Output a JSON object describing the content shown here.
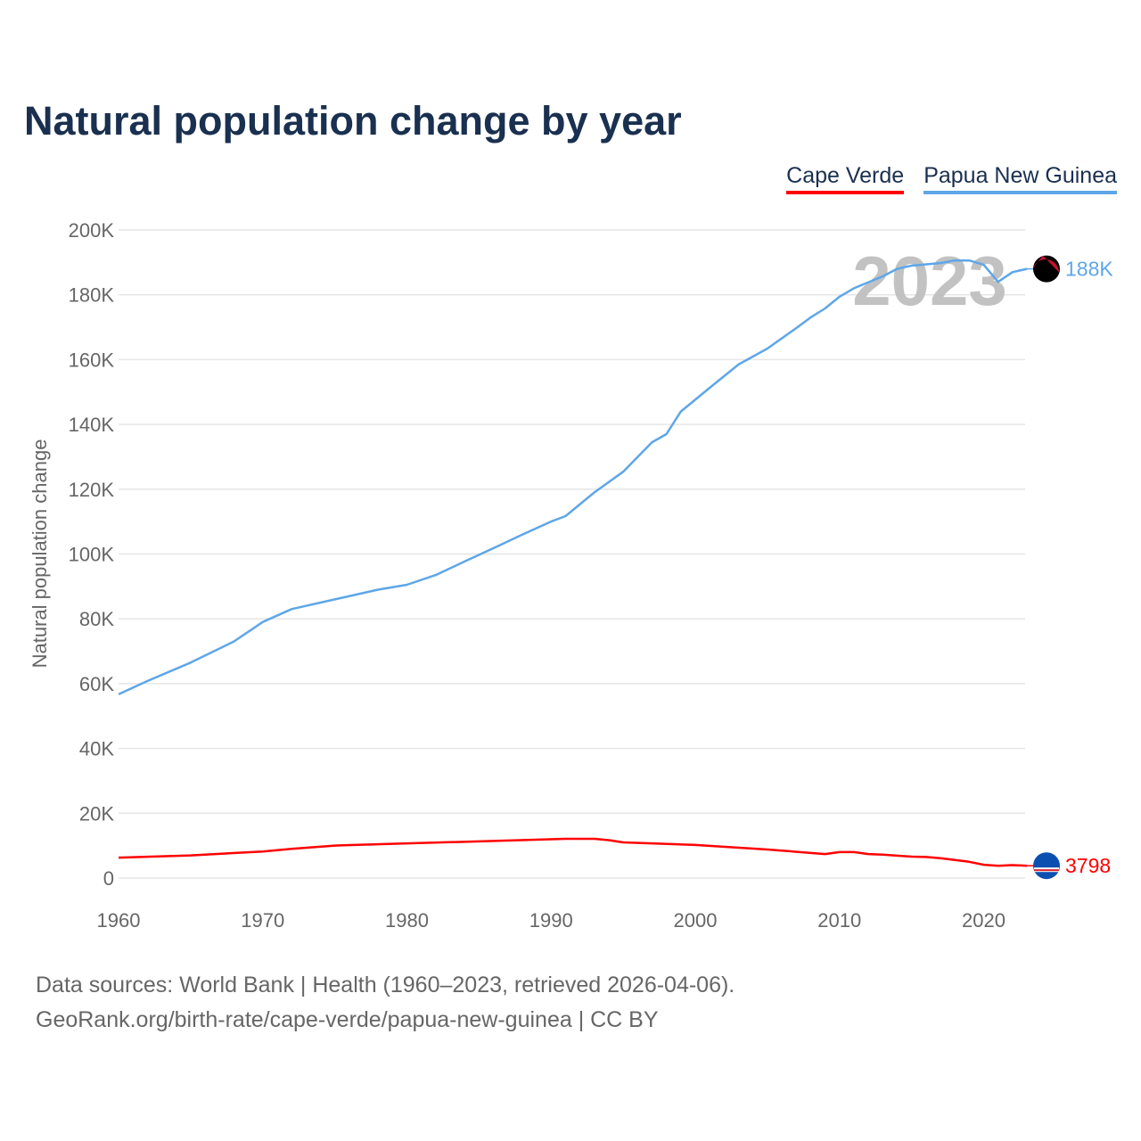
{
  "title": "Natural population change by year",
  "legend": [
    {
      "name": "Cape Verde",
      "color": "#ff0000"
    },
    {
      "name": "Papua New Guinea",
      "color": "#5ea6e8"
    }
  ],
  "footer": {
    "line1": "Data sources: World Bank | Health (1960–2023, retrieved 2026-04-06).",
    "line2": "GeoRank.org/birth-rate/cape-verde/papua-new-guinea | CC BY"
  },
  "chart_data": {
    "type": "line",
    "title": "Natural population change by year",
    "xlabel": "",
    "ylabel": "Natural population change",
    "xlim": [
      1960,
      2023
    ],
    "ylim": [
      0,
      200000
    ],
    "x_ticks": [
      1960,
      1970,
      1980,
      1990,
      2000,
      2010,
      2020
    ],
    "x_tick_labels": [
      "1960",
      "1970",
      "1980",
      "1990",
      "2000",
      "2010",
      "2020"
    ],
    "y_ticks": [
      0,
      20000,
      40000,
      60000,
      80000,
      100000,
      120000,
      140000,
      160000,
      180000,
      200000
    ],
    "y_tick_labels": [
      "0",
      "20K",
      "40K",
      "60K",
      "80K",
      "100K",
      "120K",
      "140K",
      "160K",
      "180K",
      "200K"
    ],
    "year_watermark": "2023",
    "grid": true,
    "legend_position": "top-right",
    "series": [
      {
        "name": "Papua New Guinea",
        "color": "#5ea6e8",
        "end_label": "188K",
        "points": [
          [
            1960,
            56700
          ],
          [
            1962,
            60800
          ],
          [
            1965,
            66500
          ],
          [
            1968,
            73000
          ],
          [
            1970,
            79000
          ],
          [
            1972,
            83000
          ],
          [
            1975,
            86000
          ],
          [
            1978,
            89000
          ],
          [
            1980,
            90500
          ],
          [
            1982,
            93500
          ],
          [
            1984,
            97700
          ],
          [
            1986,
            101800
          ],
          [
            1988,
            106000
          ],
          [
            1990,
            110000
          ],
          [
            1991,
            111700
          ],
          [
            1993,
            119000
          ],
          [
            1995,
            125400
          ],
          [
            1997,
            134500
          ],
          [
            1998,
            137000
          ],
          [
            1999,
            144000
          ],
          [
            2001,
            151300
          ],
          [
            2003,
            158500
          ],
          [
            2005,
            163400
          ],
          [
            2007,
            169700
          ],
          [
            2008,
            173000
          ],
          [
            2009,
            175800
          ],
          [
            2010,
            179400
          ],
          [
            2011,
            182000
          ],
          [
            2013,
            185700
          ],
          [
            2014,
            188000
          ],
          [
            2015,
            189000
          ],
          [
            2017,
            189800
          ],
          [
            2018,
            190600
          ],
          [
            2019,
            190600
          ],
          [
            2020,
            189300
          ],
          [
            2021,
            184000
          ],
          [
            2022,
            187000
          ],
          [
            2023,
            188000
          ]
        ]
      },
      {
        "name": "Cape Verde",
        "color": "#ff0000",
        "end_label": "3798",
        "points": [
          [
            1960,
            6300
          ],
          [
            1965,
            7000
          ],
          [
            1970,
            8200
          ],
          [
            1972,
            9000
          ],
          [
            1975,
            10000
          ],
          [
            1980,
            10700
          ],
          [
            1985,
            11300
          ],
          [
            1991,
            12100
          ],
          [
            1993,
            12100
          ],
          [
            1994,
            11700
          ],
          [
            1995,
            11000
          ],
          [
            2000,
            10200
          ],
          [
            2005,
            8800
          ],
          [
            2009,
            7400
          ],
          [
            2010,
            8000
          ],
          [
            2011,
            8000
          ],
          [
            2012,
            7400
          ],
          [
            2013,
            7200
          ],
          [
            2015,
            6600
          ],
          [
            2016,
            6500
          ],
          [
            2017,
            6100
          ],
          [
            2019,
            5000
          ],
          [
            2020,
            4100
          ],
          [
            2021,
            3800
          ],
          [
            2022,
            4000
          ],
          [
            2023,
            3798
          ]
        ]
      }
    ]
  }
}
